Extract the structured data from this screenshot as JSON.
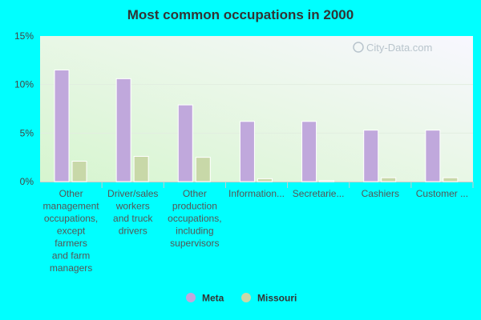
{
  "chart_data": {
    "type": "bar",
    "title": "Most common occupations in 2000",
    "xlabel": "",
    "ylabel": "",
    "ylim": [
      0,
      15
    ],
    "yticks": [
      "0%",
      "5%",
      "10%",
      "15%"
    ],
    "categories": [
      "Other management occupations, except farmers and farm managers",
      "Driver/sales workers and truck drivers",
      "Other production occupations, including supervisors",
      "Information...",
      "Secretarie...",
      "Cashiers",
      "Customer ..."
    ],
    "category_lines": [
      [
        "Other",
        "management",
        "occupations,",
        "except",
        "farmers",
        "and farm",
        "managers"
      ],
      [
        "Driver/sales",
        "workers",
        "and truck",
        "drivers"
      ],
      [
        "Other",
        "production",
        "occupations,",
        "including",
        "supervisors"
      ],
      [
        "Information..."
      ],
      [
        "Secretarie..."
      ],
      [
        "Cashiers"
      ],
      [
        "Customer ..."
      ]
    ],
    "series": [
      {
        "name": "Meta",
        "color": "#c0a8dc",
        "values": [
          11.5,
          10.6,
          7.9,
          6.2,
          6.2,
          5.3,
          5.3
        ]
      },
      {
        "name": "Missouri",
        "color": "#c8d8a8",
        "values": [
          2.1,
          2.6,
          2.5,
          0.3,
          0.1,
          0.4,
          0.4
        ]
      }
    ],
    "grid": true,
    "legend": "bottom-center"
  },
  "watermark": "City-Data.com"
}
